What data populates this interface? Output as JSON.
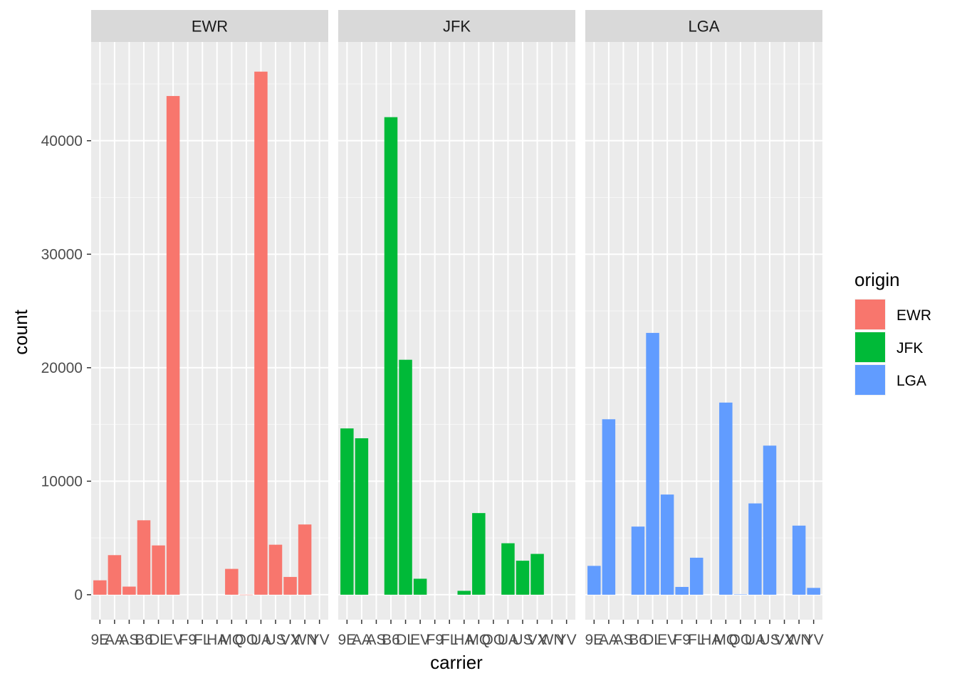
{
  "chart_data": {
    "type": "bar",
    "xlabel": "carrier",
    "ylabel": "count",
    "ylim": [
      -2200,
      48700
    ],
    "y_ticks": [
      0,
      10000,
      20000,
      30000,
      40000
    ],
    "y_tick_labels": [
      "0",
      "10000",
      "20000",
      "30000",
      "40000"
    ],
    "grid": true,
    "categories": [
      "9E",
      "AA",
      "AS",
      "B6",
      "DL",
      "EV",
      "F9",
      "FL",
      "HA",
      "MQ",
      "OO",
      "UA",
      "US",
      "VX",
      "WN",
      "YV"
    ],
    "facets": [
      {
        "name": "EWR",
        "color": "#F8766D",
        "values": [
          1268,
          3487,
          714,
          6557,
          4342,
          43939,
          0,
          0,
          0,
          2276,
          6,
          46087,
          4405,
          1566,
          6188,
          0
        ]
      },
      {
        "name": "JFK",
        "color": "#00BA38",
        "values": [
          14651,
          13783,
          0,
          42076,
          20701,
          1408,
          0,
          0,
          342,
          7193,
          0,
          4534,
          2995,
          3596,
          0,
          0
        ]
      },
      {
        "name": "LGA",
        "color": "#619CFF",
        "values": [
          2541,
          15459,
          0,
          6002,
          23067,
          8826,
          685,
          3260,
          0,
          16928,
          26,
          8044,
          13136,
          0,
          6087,
          601
        ]
      }
    ],
    "legend": {
      "title": "origin",
      "position": "right",
      "entries": [
        {
          "label": "EWR",
          "color": "#F8766D"
        },
        {
          "label": "JFK",
          "color": "#00BA38"
        },
        {
          "label": "LGA",
          "color": "#619CFF"
        }
      ]
    }
  }
}
